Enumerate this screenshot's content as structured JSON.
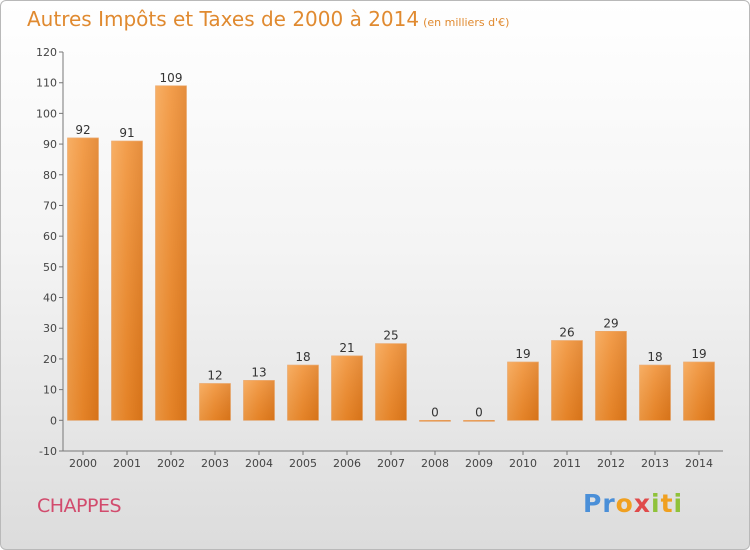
{
  "title": "Autres Impôts et Taxes de 2000 à 2014",
  "title_unit": "(en milliers d'€)",
  "commune": "CHAPPES",
  "logo_text": "Proxiti",
  "colors": {
    "bar": "#f2963a",
    "bar_dark": "#d9761f",
    "title": "#e08a30",
    "commune": "#d24b6d"
  },
  "chart_data": {
    "type": "bar",
    "title": "Autres Impôts et Taxes de 2000 à 2014",
    "subtitle": "(en milliers d'€)",
    "categories": [
      "2000",
      "2001",
      "2002",
      "2003",
      "2004",
      "2005",
      "2006",
      "2007",
      "2008",
      "2009",
      "2010",
      "2011",
      "2012",
      "2013",
      "2014"
    ],
    "values": [
      92,
      91,
      109,
      12,
      13,
      18,
      21,
      25,
      0,
      0,
      19,
      26,
      29,
      18,
      19
    ],
    "ylim": [
      -10,
      120
    ],
    "yticks": [
      -10,
      0,
      10,
      20,
      30,
      40,
      50,
      60,
      70,
      80,
      90,
      100,
      110,
      120
    ],
    "grid": false
  }
}
